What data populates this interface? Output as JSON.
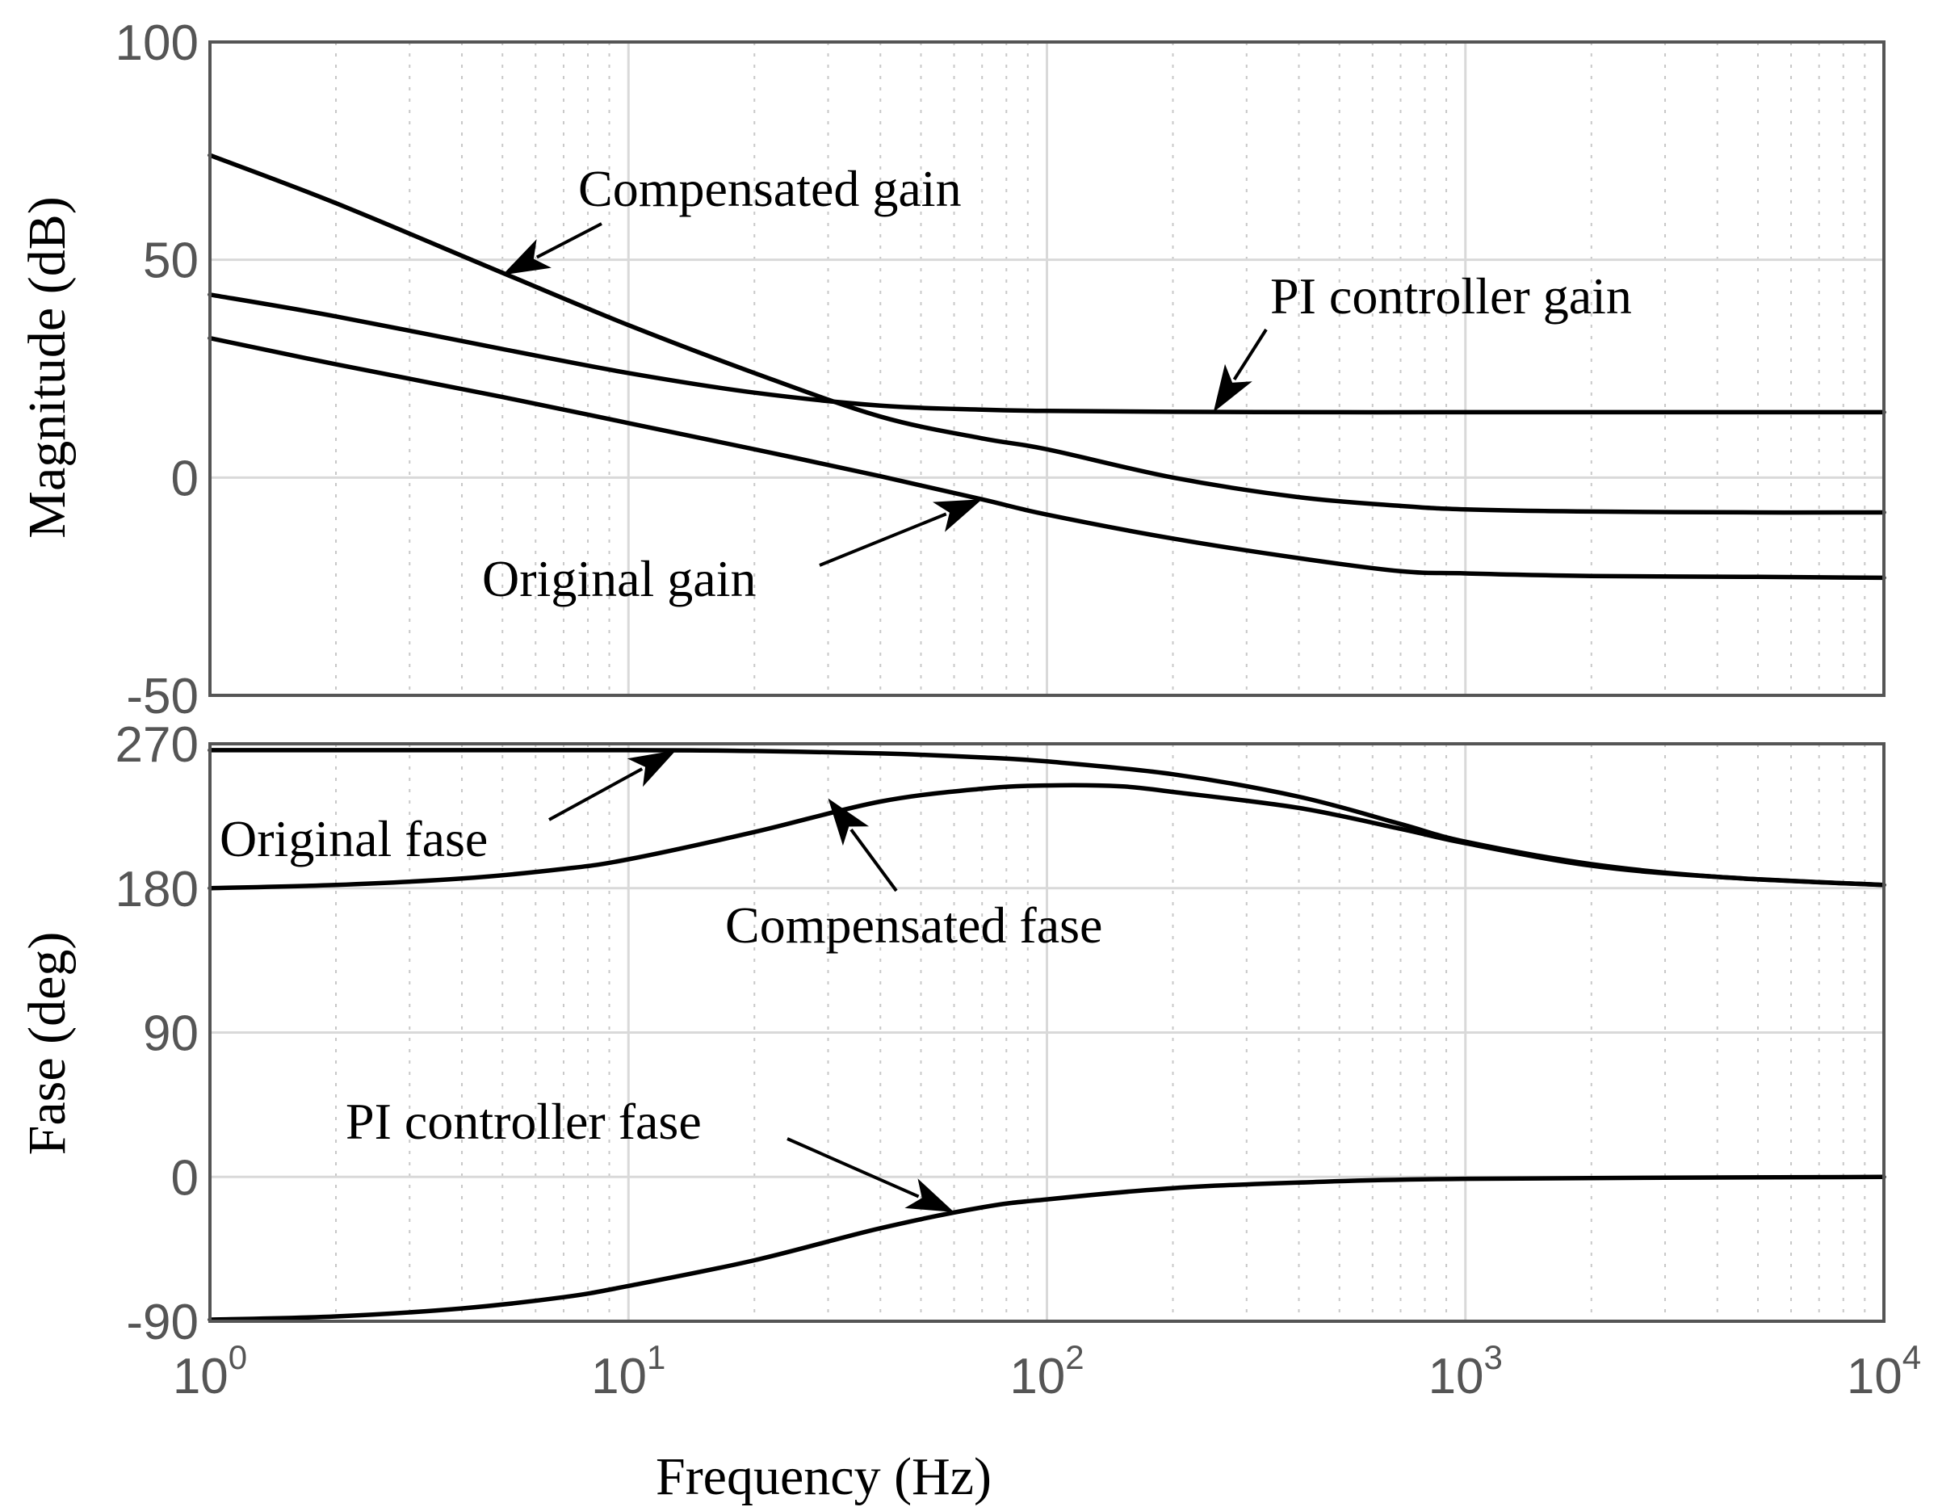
{
  "chart_data": {
    "type": "line",
    "x_scale": "log",
    "xlim": [
      1,
      10000
    ],
    "xlabel": "Frequency  (Hz)",
    "x_ticks": [
      {
        "base": "10",
        "exp": "0"
      },
      {
        "base": "10",
        "exp": "1"
      },
      {
        "base": "10",
        "exp": "2"
      },
      {
        "base": "10",
        "exp": "3"
      },
      {
        "base": "10",
        "exp": "4"
      }
    ],
    "panels": [
      {
        "id": "magnitude",
        "ylabel": "Magnitude (dB)",
        "ylim": [
          -50,
          100
        ],
        "y_ticks": [
          "100",
          "50",
          "0",
          "-50"
        ],
        "y_tick_values": [
          100,
          50,
          0,
          -50
        ],
        "series": [
          {
            "name": "Compensated gain",
            "x": [
              1,
              2,
              5,
              10,
              20,
              40,
              70,
              100,
              200,
              400,
              700,
              1000,
              2000,
              5000,
              10000
            ],
            "y": [
              74,
              63,
              47,
              35,
              24,
              14,
              9,
              6.5,
              0,
              -4.5,
              -6.5,
              -7.3,
              -7.8,
              -8,
              -8
            ]
          },
          {
            "name": "PI controller gain",
            "x": [
              1,
              2,
              5,
              10,
              20,
              40,
              70,
              100,
              200,
              500,
              1000,
              10000
            ],
            "y": [
              42,
              37,
              29.5,
              24,
              19.5,
              16.5,
              15.6,
              15.3,
              15.1,
              15,
              15,
              15
            ]
          },
          {
            "name": "Original gain",
            "x": [
              1,
              2,
              5,
              10,
              20,
              40,
              70,
              100,
              200,
              400,
              700,
              1000,
              2000,
              5000,
              10000
            ],
            "y": [
              32,
              26,
              18.5,
              12.5,
              6.5,
              0.3,
              -5,
              -8.5,
              -14,
              -18.5,
              -21.5,
              -22,
              -22.6,
              -22.8,
              -23
            ]
          }
        ]
      },
      {
        "id": "phase",
        "ylabel": "Fase (deg)",
        "ylim": [
          -90,
          270
        ],
        "y_ticks": [
          "270",
          "180",
          "90",
          "0",
          "-90"
        ],
        "y_tick_values": [
          270,
          180,
          90,
          0,
          -90
        ],
        "series": [
          {
            "name": "Original fase",
            "x": [
              1,
              10,
              20,
              40,
              70,
              100,
              200,
              400,
              700,
              1000,
              2000,
              4000,
              10000
            ],
            "y": [
              266,
              266,
              265.5,
              264,
              261.5,
              259,
              251,
              237,
              220,
              209,
              195,
              187,
              182
            ]
          },
          {
            "name": "Compensated fase",
            "x": [
              1,
              2,
              4,
              7,
              10,
              20,
              40,
              70,
              100,
              150,
              200,
              400,
              700,
              1000,
              2000,
              4000,
              10000
            ],
            "y": [
              180,
              182,
              186,
              192,
              198,
              215,
              234,
              242,
              244,
              243.5,
              240,
              230,
              217,
              208,
              194,
              187,
              182
            ]
          },
          {
            "name": "PI controller fase",
            "x": [
              1,
              2,
              4,
              7,
              10,
              20,
              40,
              70,
              100,
              200,
              400,
              1000,
              10000
            ],
            "y": [
              -89,
              -87,
              -82,
              -75,
              -68,
              -52,
              -32,
              -19,
              -14,
              -7,
              -3.5,
              -1.2,
              0
            ]
          }
        ]
      }
    ],
    "annotations": [
      {
        "text": "Compensated gain",
        "panel": "magnitude",
        "points_to": [
          5,
          46.5
        ]
      },
      {
        "text": "PI controller gain",
        "panel": "magnitude",
        "points_to": [
          250,
          15
        ]
      },
      {
        "text": "Original gain",
        "panel": "magnitude",
        "points_to": [
          70,
          -5
        ]
      },
      {
        "text": "Original fase",
        "panel": "phase",
        "points_to": [
          13,
          266
        ]
      },
      {
        "text": "Compensated fase",
        "panel": "phase",
        "points_to": [
          30,
          236
        ]
      },
      {
        "text": "PI controller fase",
        "panel": "phase",
        "points_to": [
          60,
          -22
        ]
      }
    ]
  }
}
